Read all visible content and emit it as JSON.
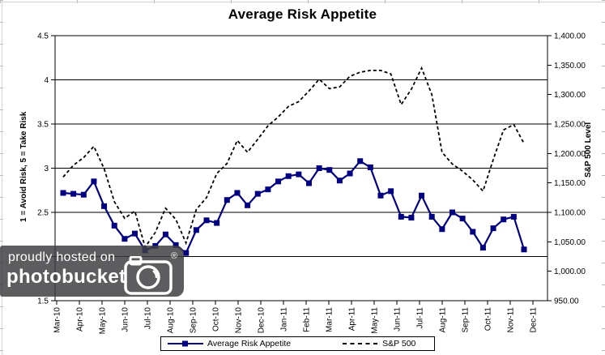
{
  "page": {
    "title": "Average Risk Appetite"
  },
  "watermark": {
    "line1": "proudly hosted on",
    "line2": "photobucket",
    "registered": "®"
  },
  "chart_data": {
    "type": "line",
    "title": "Average Risk Appetite",
    "sampling": "bi-weekly",
    "grid": "horizontal",
    "legend_position": "bottom",
    "x_axis": {
      "labels": [
        "Mar-10",
        "Apr-10",
        "May-10",
        "Jun-10",
        "Jul-10",
        "Aug-10",
        "Sep-10",
        "Oct-10",
        "Nov-10",
        "Dec-10",
        "Jan-11",
        "Feb-11",
        "Mar-11",
        "Apr-11",
        "May-11",
        "Jun-11",
        "Jul-11",
        "Aug-11",
        "Sep-11",
        "Oct-11",
        "Nov-11",
        "Dec-11"
      ],
      "label_rotation_deg": 90
    },
    "y_left": {
      "title": "1 = Avoid Risk, 5 = Take Risk",
      "min": 1.5,
      "max": 4.5,
      "step": 0.5,
      "tick_labels": [
        "1.5",
        "2",
        "2.5",
        "3",
        "3.5",
        "4",
        "4.5"
      ]
    },
    "y_right": {
      "title": "S&P 500 Level",
      "min": 950,
      "max": 1400,
      "step": 50,
      "tick_labels": [
        "950.00",
        "1,000.00",
        "1,050.00",
        "1,100.00",
        "1,150.00",
        "1,200.00",
        "1,250.00",
        "1,300.00",
        "1,350.00",
        "1,400.00"
      ]
    },
    "series": [
      {
        "name": "Average Risk Appetite",
        "axis": "left",
        "color": "#000080",
        "line_style": "solid",
        "marker": "square",
        "values": [
          2.72,
          2.71,
          2.7,
          2.85,
          2.57,
          2.35,
          2.2,
          2.26,
          2.07,
          2.12,
          2.25,
          2.13,
          2.04,
          2.3,
          2.41,
          2.38,
          2.64,
          2.72,
          2.58,
          2.71,
          2.76,
          2.85,
          2.91,
          2.93,
          2.83,
          3.0,
          2.98,
          2.86,
          2.94,
          3.08,
          3.01,
          2.69,
          2.74,
          2.45,
          2.44,
          2.69,
          2.45,
          2.31,
          2.5,
          2.43,
          2.28,
          2.1,
          2.32,
          2.42,
          2.45,
          2.08
        ]
      },
      {
        "name": "S&P 500",
        "axis": "right",
        "color": "#000000",
        "line_style": "dashed",
        "marker": "none",
        "values": [
          1160,
          1180,
          1193,
          1212,
          1174,
          1118,
          1090,
          1102,
          1041,
          1066,
          1107,
          1088,
          1048,
          1105,
          1125,
          1166,
          1183,
          1222,
          1202,
          1224,
          1247,
          1262,
          1280,
          1288,
          1306,
          1326,
          1310,
          1313,
          1331,
          1338,
          1341,
          1341,
          1335,
          1283,
          1309,
          1345,
          1300,
          1202,
          1182,
          1170,
          1155,
          1136,
          1190,
          1240,
          1249,
          1217
        ]
      }
    ]
  }
}
